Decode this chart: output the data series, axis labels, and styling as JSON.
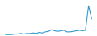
{
  "x": [
    0,
    1,
    2,
    3,
    4,
    5,
    6,
    7,
    8,
    9,
    10,
    11,
    12,
    13,
    14,
    15,
    16,
    17,
    18,
    19,
    20,
    21,
    22,
    23,
    24,
    25,
    26,
    27,
    28
  ],
  "y": [
    0.01,
    0.01,
    0.01,
    0.02,
    0.02,
    0.03,
    0.02,
    0.03,
    0.03,
    0.04,
    0.03,
    0.05,
    0.04,
    0.06,
    0.07,
    0.1,
    0.08,
    0.07,
    0.08,
    0.09,
    0.06,
    0.06,
    0.07,
    0.08,
    0.09,
    0.08,
    0.09,
    0.55,
    0.3
  ],
  "line_color": "#3399cc",
  "linewidth": 0.8,
  "background_color": "#ffffff",
  "ylim": [
    -0.01,
    0.65
  ]
}
